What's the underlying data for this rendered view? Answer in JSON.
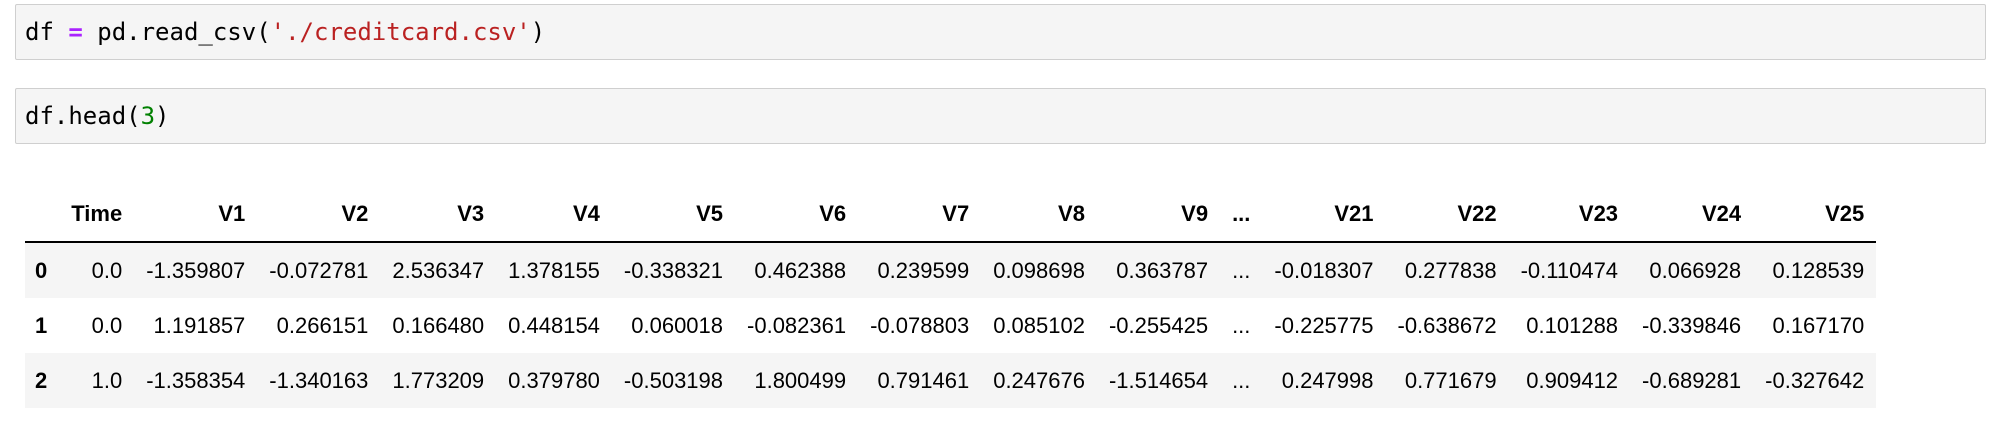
{
  "cells": [
    {
      "tokens": [
        "df ",
        "=",
        " pd.read_csv(",
        "'./creditcard.csv'",
        ")"
      ]
    },
    {
      "tokens": [
        "df.head(",
        "3",
        ")"
      ]
    }
  ],
  "table": {
    "columns": [
      "",
      "Time",
      "V1",
      "V2",
      "V3",
      "V4",
      "V5",
      "V6",
      "V7",
      "V8",
      "V9",
      "...",
      "V21",
      "V22",
      "V23",
      "V24",
      "V25"
    ],
    "rows": [
      [
        "0",
        "0.0",
        "-1.359807",
        "-0.072781",
        "2.536347",
        "1.378155",
        "-0.338321",
        "0.462388",
        "0.239599",
        "0.098698",
        "0.363787",
        "...",
        "-0.018307",
        "0.277838",
        "-0.110474",
        "0.066928",
        "0.128539"
      ],
      [
        "1",
        "0.0",
        "1.191857",
        "0.266151",
        "0.166480",
        "0.448154",
        "0.060018",
        "-0.082361",
        "-0.078803",
        "0.085102",
        "-0.255425",
        "...",
        "-0.225775",
        "-0.638672",
        "0.101288",
        "-0.339846",
        "0.167170"
      ],
      [
        "2",
        "1.0",
        "-1.358354",
        "-1.340163",
        "1.773209",
        "0.379780",
        "-0.503198",
        "1.800499",
        "0.791461",
        "0.247676",
        "-1.514654",
        "...",
        "0.247998",
        "0.771679",
        "0.909412",
        "-0.689281",
        "-0.327642"
      ]
    ]
  }
}
